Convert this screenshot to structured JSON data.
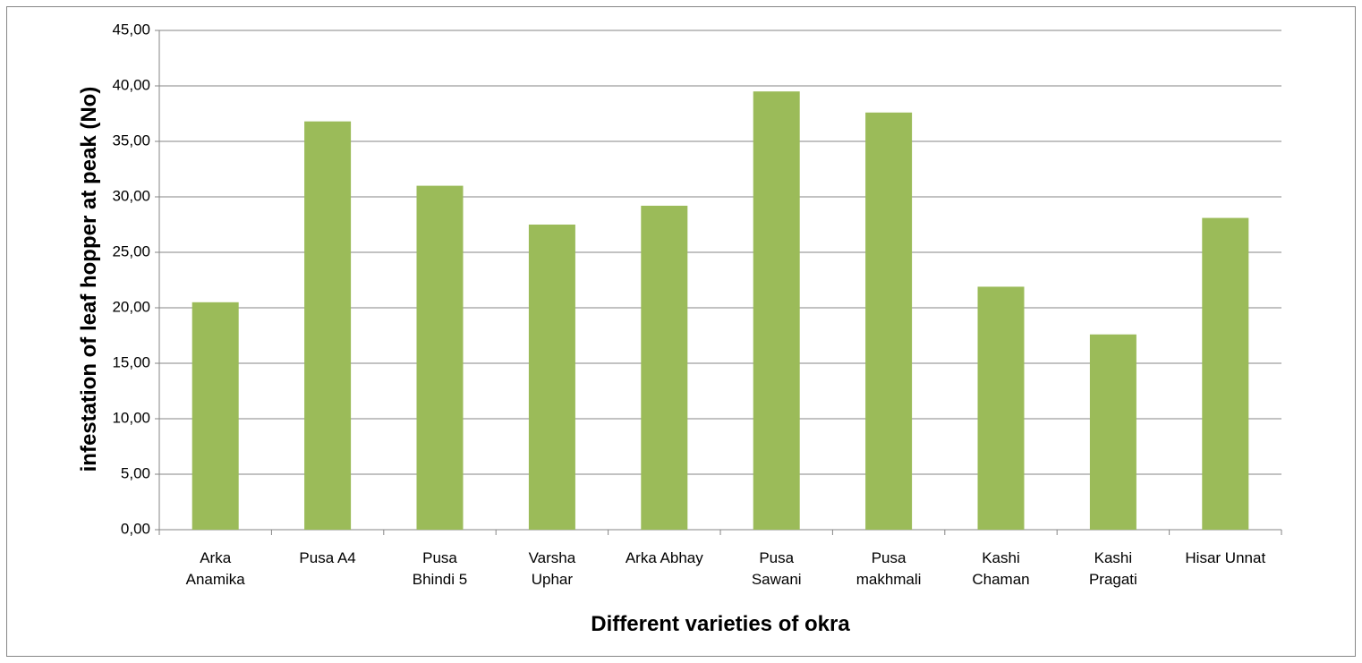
{
  "chart_data": {
    "type": "bar",
    "categories": [
      "Arka\nAnamika",
      "Pusa A4",
      "Pusa\nBhindi 5",
      "Varsha\nUphar",
      "Arka Abhay",
      "Pusa\nSawani",
      "Pusa\nmakhmali",
      "Kashi\nChaman",
      "Kashi\nPragati",
      "Hisar Unnat"
    ],
    "values": [
      20.5,
      36.8,
      31.0,
      27.5,
      29.2,
      39.5,
      37.6,
      21.9,
      17.6,
      28.1
    ],
    "color": "#9bbb59",
    "x_label": "Different varieties of okra",
    "y_label": "infestation of leaf hopper at peak (No)",
    "ylim": [
      0,
      45
    ],
    "yticks": [
      {
        "value": 0,
        "label": "0,00"
      },
      {
        "value": 5,
        "label": "5,00"
      },
      {
        "value": 10,
        "label": "10,00"
      },
      {
        "value": 15,
        "label": "15,00"
      },
      {
        "value": 20,
        "label": "20,00"
      },
      {
        "value": 25,
        "label": "25,00"
      },
      {
        "value": 30,
        "label": "30,00"
      },
      {
        "value": 35,
        "label": "35,00"
      },
      {
        "value": 40,
        "label": "40,00"
      },
      {
        "value": 45,
        "label": "45,00"
      }
    ],
    "grid": true
  }
}
